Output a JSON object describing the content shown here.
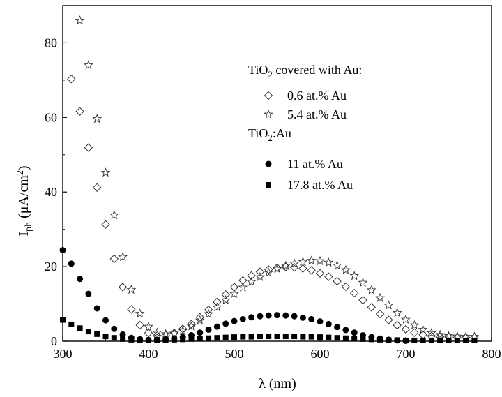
{
  "chart_data": {
    "type": "scatter",
    "title": "",
    "xlabel": "λ (nm)",
    "ylabel": {
      "main": "I",
      "sub": "ph",
      "unit_pre": " (μA/cm",
      "unit_sup": "2",
      "unit_post": ")"
    },
    "xlim": [
      300,
      800
    ],
    "ylim": [
      0,
      90
    ],
    "xticks": [
      300,
      400,
      500,
      600,
      700,
      800
    ],
    "yticks": [
      0,
      20,
      40,
      60,
      80
    ],
    "legend_position": "top-right",
    "legend_groups": [
      {
        "title": {
          "pre": "TiO",
          "sub": "2",
          "post": " covered with Au:"
        },
        "series_index": [
          0,
          1
        ]
      },
      {
        "title": {
          "pre": "TiO",
          "sub": "2",
          "post": ":Au"
        },
        "series_index": [
          2,
          3
        ]
      }
    ],
    "series": [
      {
        "name": "0.6 at.% Au",
        "marker": "diamond-open",
        "x": [
          310,
          320,
          330,
          340,
          350,
          360,
          370,
          380,
          390,
          400,
          410,
          420,
          430,
          440,
          450,
          460,
          470,
          480,
          490,
          500,
          510,
          520,
          530,
          540,
          550,
          560,
          570,
          580,
          590,
          600,
          610,
          620,
          630,
          640,
          650,
          660,
          670,
          680,
          690,
          700,
          710,
          720,
          730,
          740,
          750,
          760,
          770,
          780
        ],
        "y": [
          70.3,
          61.6,
          51.9,
          41.2,
          31.3,
          22.1,
          14.5,
          8.5,
          4.3,
          2.2,
          1.5,
          1.6,
          2.2,
          3.3,
          4.6,
          6.4,
          8.4,
          10.5,
          12.5,
          14.5,
          16.3,
          17.6,
          18.6,
          19.2,
          19.7,
          19.9,
          19.8,
          19.5,
          19.0,
          18.2,
          17.3,
          16.1,
          14.6,
          12.9,
          11.0,
          9.1,
          7.3,
          5.7,
          4.3,
          3.2,
          2.3,
          1.7,
          1.4,
          1.2,
          1.1,
          1.0,
          1.0,
          1.0
        ]
      },
      {
        "name": "5.4 at.% Au",
        "marker": "star-open",
        "x": [
          320,
          330,
          340,
          350,
          360,
          370,
          380,
          390,
          400,
          410,
          420,
          430,
          440,
          450,
          460,
          470,
          480,
          490,
          500,
          510,
          520,
          530,
          540,
          550,
          560,
          570,
          580,
          590,
          600,
          610,
          620,
          630,
          640,
          650,
          660,
          670,
          680,
          690,
          700,
          710,
          720,
          730,
          740,
          750,
          760,
          770,
          780
        ],
        "y": [
          86.0,
          74.0,
          59.6,
          45.2,
          33.8,
          22.6,
          13.8,
          7.4,
          3.9,
          2.3,
          1.9,
          2.1,
          2.8,
          4.0,
          5.6,
          7.3,
          9.1,
          11.0,
          12.7,
          14.4,
          15.9,
          17.2,
          18.4,
          19.4,
          20.2,
          20.8,
          21.3,
          21.6,
          21.5,
          21.1,
          20.3,
          19.1,
          17.5,
          15.7,
          13.7,
          11.6,
          9.6,
          7.6,
          5.8,
          4.3,
          3.1,
          2.2,
          1.7,
          1.4,
          1.3,
          1.2,
          1.2
        ]
      },
      {
        "name": "11 at.% Au",
        "marker": "circle-filled",
        "x": [
          300,
          310,
          320,
          330,
          340,
          350,
          360,
          370,
          380,
          390,
          400,
          410,
          420,
          430,
          440,
          450,
          460,
          470,
          480,
          490,
          500,
          510,
          520,
          530,
          540,
          550,
          560,
          570,
          580,
          590,
          600,
          610,
          620,
          630,
          640,
          650,
          660,
          670,
          680,
          690,
          700
        ],
        "y": [
          24.4,
          20.8,
          16.7,
          12.7,
          8.8,
          5.6,
          3.3,
          1.8,
          0.9,
          0.5,
          0.3,
          0.4,
          0.5,
          0.7,
          1.1,
          1.6,
          2.3,
          3.1,
          3.9,
          4.7,
          5.4,
          5.9,
          6.4,
          6.7,
          6.9,
          7.0,
          6.9,
          6.7,
          6.3,
          5.9,
          5.3,
          4.6,
          3.8,
          3.0,
          2.3,
          1.6,
          1.1,
          0.7,
          0.4,
          0.2,
          0.1
        ]
      },
      {
        "name": "17.8 at.% Au",
        "marker": "square-filled",
        "x": [
          300,
          310,
          320,
          330,
          340,
          350,
          360,
          370,
          380,
          390,
          400,
          410,
          420,
          430,
          440,
          450,
          460,
          470,
          480,
          490,
          500,
          510,
          520,
          530,
          540,
          550,
          560,
          570,
          580,
          590,
          600,
          610,
          620,
          630,
          640,
          650,
          660,
          670,
          680,
          690,
          700,
          710,
          720,
          730,
          740,
          750,
          760,
          770,
          780
        ],
        "y": [
          5.7,
          4.5,
          3.5,
          2.6,
          1.9,
          1.3,
          0.9,
          0.6,
          0.4,
          0.3,
          0.3,
          0.3,
          0.3,
          0.4,
          0.5,
          0.6,
          0.7,
          0.8,
          0.9,
          1.0,
          1.1,
          1.2,
          1.2,
          1.3,
          1.3,
          1.3,
          1.3,
          1.3,
          1.2,
          1.2,
          1.1,
          1.0,
          0.9,
          0.8,
          0.7,
          0.6,
          0.5,
          0.4,
          0.3,
          0.3,
          0.2,
          0.2,
          0.2,
          0.2,
          0.2,
          0.2,
          0.2,
          0.2,
          0.2
        ]
      }
    ]
  }
}
